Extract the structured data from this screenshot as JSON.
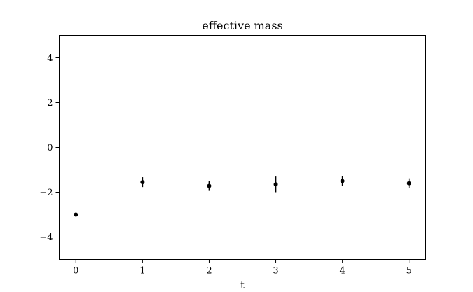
{
  "chart_data": {
    "type": "scatter",
    "title": "effective mass",
    "xlabel": "t",
    "ylabel": "",
    "xlim": [
      -0.25,
      5.25
    ],
    "ylim": [
      -5,
      5
    ],
    "xticks": [
      0,
      1,
      2,
      3,
      4,
      5
    ],
    "xtick_labels": [
      "0",
      "1",
      "2",
      "3",
      "4",
      "5"
    ],
    "yticks": [
      -4,
      -2,
      0,
      2,
      4
    ],
    "ytick_labels": [
      "−4",
      "−2",
      "0",
      "2",
      "4"
    ],
    "grid": false,
    "series": [
      {
        "x": [
          0,
          1,
          2,
          3,
          4,
          5
        ],
        "y": [
          -3.0,
          -1.55,
          -1.72,
          -1.65,
          -1.5,
          -1.6
        ],
        "yerr": [
          0.0,
          0.22,
          0.22,
          0.35,
          0.22,
          0.22
        ]
      }
    ],
    "colors": {
      "marker": "#000000",
      "axes": "#000000",
      "background": "#ffffff"
    }
  }
}
